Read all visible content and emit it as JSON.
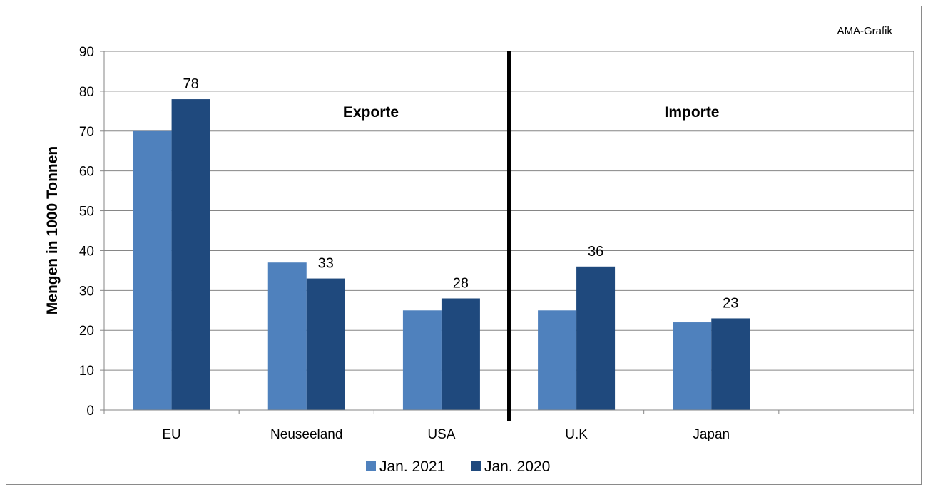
{
  "chart_data": {
    "type": "bar",
    "credit": "AMA-Grafik",
    "ylabel": "Mengen in 1000 Tonnen",
    "xlabel": "",
    "ylim": [
      0,
      90
    ],
    "yticks": [
      0,
      10,
      20,
      30,
      40,
      50,
      60,
      70,
      80,
      90
    ],
    "grid": true,
    "legend_position": "bottom",
    "categories": [
      "EU",
      "Neuseeland",
      "USA",
      "U.K",
      "Japan",
      ""
    ],
    "series": [
      {
        "name": "Jan. 2021",
        "color": "#4F81BD",
        "values": [
          70,
          37,
          25,
          25,
          22,
          null
        ]
      },
      {
        "name": "Jan. 2020",
        "color": "#1F497D",
        "values": [
          78,
          33,
          28,
          36,
          23,
          null
        ]
      }
    ],
    "data_labels": [
      "78",
      "33",
      "28",
      "36",
      "23"
    ],
    "section_labels": [
      "Exporte",
      "Importe"
    ]
  }
}
